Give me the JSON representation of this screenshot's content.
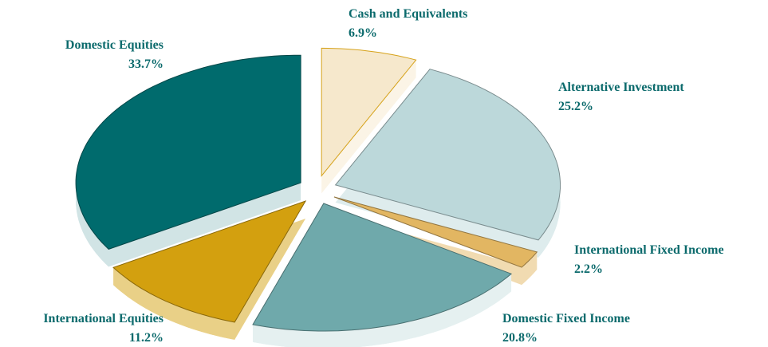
{
  "chart_data": {
    "type": "pie",
    "categories": [
      "Cash and Equivalents",
      "Alternative Investment",
      "International Fixed Income",
      "Domestic Fixed Income",
      "International Equities",
      "Domestic Equities"
    ],
    "values": [
      6.9,
      25.2,
      2.2,
      20.8,
      11.2,
      33.7
    ],
    "value_labels": [
      "6.9%",
      "25.2%",
      "2.2%",
      "20.8%",
      "11.2%",
      "33.7%"
    ],
    "colors": [
      "#f6e8cc",
      "#bcd8da",
      "#e2b662",
      "#6fa9ab",
      "#d3a00f",
      "#006b6d"
    ]
  }
}
